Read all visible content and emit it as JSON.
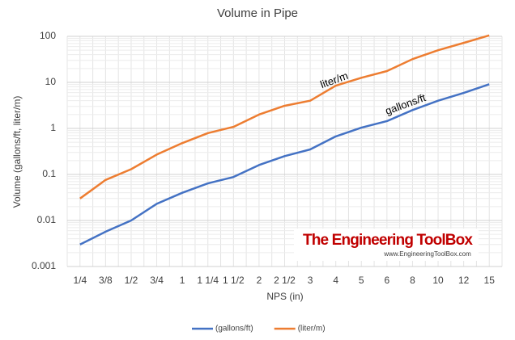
{
  "chart_data": {
    "type": "line",
    "title": "Volume  in Pipe",
    "x_label": "NPS (in)",
    "y_label": "Volume (gallons/ft, liter/m)",
    "categories": [
      "1/4",
      "3/8",
      "1/2",
      "3/4",
      "1",
      "1 1/4",
      "1 1/2",
      "2",
      "2 1/2",
      "3",
      "4",
      "5",
      "6",
      "8",
      "10",
      "12",
      "15"
    ],
    "series": [
      {
        "name": "(gallons/ft)",
        "color": "#4472c4",
        "values": [
          0.003,
          0.0057,
          0.01,
          0.023,
          0.04,
          0.064,
          0.088,
          0.16,
          0.25,
          0.35,
          0.67,
          1.04,
          1.44,
          2.5,
          4.0,
          5.9,
          9.1
        ]
      },
      {
        "name": "(liter/m)",
        "color": "#ed7d31",
        "values": [
          0.03,
          0.076,
          0.13,
          0.27,
          0.48,
          0.79,
          1.08,
          2.0,
          3.1,
          4.0,
          8.5,
          12.6,
          17.6,
          32,
          50,
          72,
          105
        ]
      }
    ],
    "y_scale": "log",
    "ylim": [
      0.001,
      100
    ],
    "yticks": [
      0.001,
      0.01,
      0.1,
      1,
      10,
      100
    ],
    "grid": true,
    "legend": "bottom",
    "annotations": [
      "liter/m",
      "gallons/ft"
    ],
    "watermark": {
      "title": "The Engineering ToolBox",
      "url": "www.EngineeringToolBox.com"
    }
  }
}
